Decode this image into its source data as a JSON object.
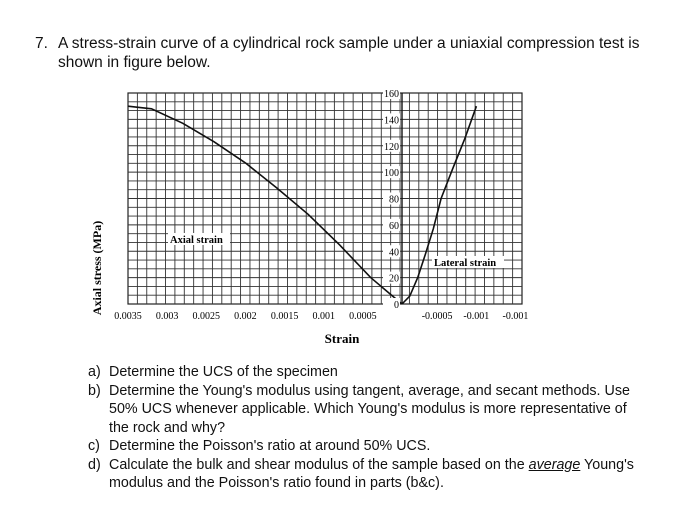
{
  "question": {
    "number": "7.",
    "text": "A stress-strain curve of a cylindrical rock sample under a uniaxial compression test is shown in figure below."
  },
  "chart_data": {
    "type": "line",
    "title": "",
    "xlabel": "Strain",
    "ylabel": "Axial stress (MPa)",
    "x_ticks_left": [
      "0.0035",
      "0.003",
      "0.0025",
      "0.002",
      "0.0015",
      "0.001",
      "0.0005"
    ],
    "x_ticks_right": [
      "-0.0005",
      "-0.001",
      "-0.001"
    ],
    "y_ticks": [
      "160",
      "140",
      "120",
      "100",
      "80",
      "60",
      "40",
      "20",
      "0"
    ],
    "ylim": [
      0,
      160
    ],
    "grid": true,
    "series": [
      {
        "name": "Axial strain",
        "x": [
          0.0035,
          0.0032,
          0.0028,
          0.0024,
          0.002,
          0.0016,
          0.0012,
          0.0008,
          0.0004,
          0.0
        ],
        "y": [
          150,
          148,
          137,
          123,
          107,
          88,
          68,
          45,
          20,
          0
        ]
      },
      {
        "name": "Lateral strain",
        "x": [
          0.0,
          -0.0001,
          -0.0002,
          -0.0003,
          -0.0004,
          -0.0005,
          -0.00065,
          -0.0008,
          -0.00095
        ],
        "y": [
          0,
          6,
          20,
          38,
          57,
          80,
          103,
          125,
          150
        ]
      }
    ]
  },
  "parts": [
    {
      "letter": "a)",
      "text": "Determine the UCS of the specimen"
    },
    {
      "letter": "b)",
      "text": "Determine the Young's modulus using tangent, average, and secant methods. Use 50% UCS whenever applicable. Which Young's modulus is more representative of the rock and why?"
    },
    {
      "letter": "c)",
      "text": "Determine the Poisson's ratio at around 50% UCS."
    },
    {
      "letter": "d)",
      "text_before": "Calculate the bulk and shear modulus of the sample based on the ",
      "text_emph": "average",
      "text_after": " Young's modulus and the Poisson's ratio found in parts (b&c)."
    }
  ]
}
